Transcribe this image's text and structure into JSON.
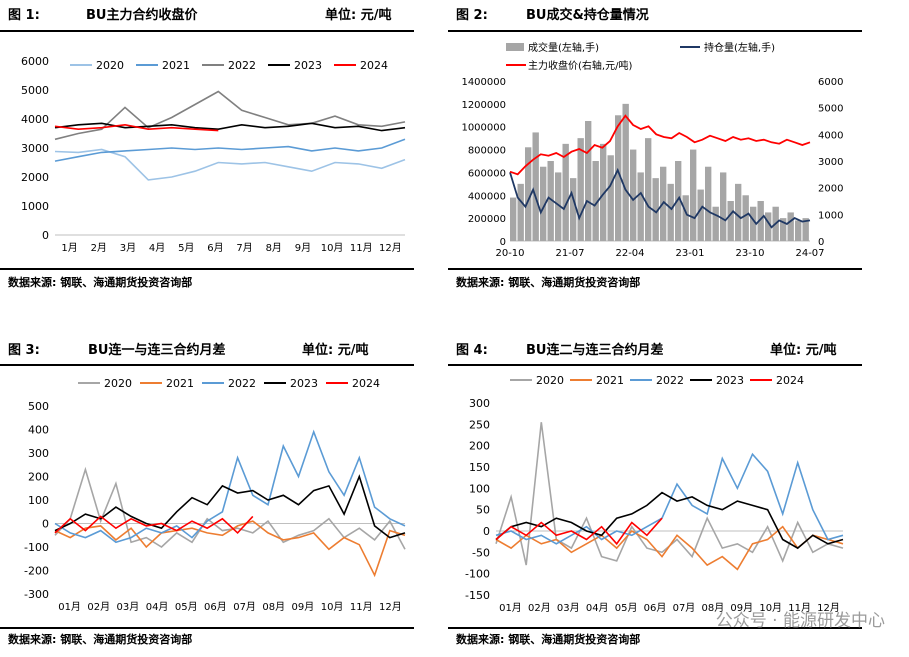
{
  "panels": [
    {
      "figure": "图 1:",
      "title": "BU主力合约收盘价",
      "unit": "单位: 元/吨",
      "source": "数据来源: 钢联、海通期货投资咨询部",
      "chart_data": {
        "type": "line",
        "legend": [
          "2020",
          "2021",
          "2022",
          "2023",
          "2024"
        ],
        "colors": [
          "#9dc3e6",
          "#5b9bd5",
          "#808080",
          "#000000",
          "#ff0000"
        ],
        "x_tick_labels": [
          "1月",
          "2月",
          "3月",
          "4月",
          "5月",
          "6月",
          "7月",
          "8月",
          "9月",
          "10月",
          "11月",
          "12月"
        ],
        "yticks": [
          0,
          1000,
          2000,
          3000,
          4000,
          5000,
          6000
        ],
        "ylim": [
          0,
          6000
        ],
        "series": [
          {
            "name": "2020",
            "values": [
              2880,
              2850,
              2950,
              2700,
              1900,
              2000,
              2200,
              2500,
              2450,
              2500,
              2350,
              2200,
              2500,
              2450,
              2300,
              2600
            ]
          },
          {
            "name": "2021",
            "values": [
              2550,
              2700,
              2850,
              2900,
              2950,
              3000,
              2950,
              3000,
              2950,
              3000,
              3050,
              2900,
              3000,
              2900,
              3000,
              3300
            ]
          },
          {
            "name": "2022",
            "values": [
              3300,
              3500,
              3650,
              4400,
              3700,
              4050,
              4500,
              4950,
              4300,
              4050,
              3800,
              3850,
              4100,
              3800,
              3750,
              3900
            ]
          },
          {
            "name": "2023",
            "values": [
              3700,
              3800,
              3850,
              3700,
              3750,
              3800,
              3700,
              3650,
              3800,
              3700,
              3750,
              3850,
              3700,
              3750,
              3600,
              3700
            ]
          },
          {
            "name": "2024",
            "values": [
              3750,
              3650,
              3700,
              3800,
              3650,
              3700,
              3650,
              3600
            ]
          }
        ]
      }
    },
    {
      "figure": "图 2:",
      "title": "BU成交&持仓量情况",
      "unit": "",
      "source": "数据来源: 钢联、海通期货投资咨询部",
      "chart_data": {
        "type": "bar+line",
        "legend": [
          "成交量(左轴,手)",
          "持仓量(左轴,手)",
          "主力收盘价(右轴,元/吨)"
        ],
        "colors": [
          "#a6a6a6",
          "#1f3864",
          "#ff0000"
        ],
        "x_tick_labels": [
          "20-10",
          "21-07",
          "22-04",
          "23-01",
          "23-10",
          "24-07"
        ],
        "left_yticks": [
          0,
          200000,
          400000,
          600000,
          800000,
          1000000,
          1200000,
          1400000
        ],
        "right_yticks": [
          0,
          1000,
          2000,
          3000,
          4000,
          5000,
          6000
        ],
        "ylim_left": [
          0,
          1400000
        ],
        "ylim_right": [
          0,
          6000
        ],
        "volume": [
          380000,
          500000,
          820000,
          950000,
          650000,
          700000,
          600000,
          850000,
          550000,
          900000,
          1050000,
          700000,
          850000,
          750000,
          1100000,
          1200000,
          800000,
          600000,
          900000,
          550000,
          650000,
          500000,
          700000,
          400000,
          800000,
          450000,
          650000,
          300000,
          600000,
          350000,
          500000,
          400000,
          300000,
          350000,
          250000,
          300000,
          200000,
          250000,
          180000,
          200000
        ],
        "open_interest": [
          600000,
          380000,
          300000,
          450000,
          250000,
          380000,
          330000,
          280000,
          420000,
          200000,
          350000,
          310000,
          400000,
          480000,
          620000,
          450000,
          360000,
          420000,
          300000,
          250000,
          340000,
          280000,
          380000,
          230000,
          200000,
          300000,
          250000,
          220000,
          180000,
          260000,
          200000,
          240000,
          150000,
          220000,
          120000,
          180000,
          150000,
          200000,
          170000,
          180000
        ],
        "close_price": [
          2600,
          2500,
          2800,
          3050,
          3250,
          3200,
          3300,
          3150,
          3350,
          3450,
          3300,
          3600,
          3500,
          3750,
          4300,
          4700,
          4350,
          4200,
          4300,
          4000,
          3900,
          3850,
          4050,
          3900,
          3700,
          3800,
          3950,
          3850,
          3750,
          3900,
          3800,
          3850,
          3750,
          3800,
          3700,
          3650,
          3800,
          3700,
          3600,
          3700
        ]
      }
    },
    {
      "figure": "图 3:",
      "title": "BU连一与连三合约月差",
      "unit": "单位: 元/吨",
      "source": "数据来源: 钢联、海通期货投资咨询部",
      "chart_data": {
        "type": "line",
        "legend": [
          "2020",
          "2021",
          "2022",
          "2023",
          "2024"
        ],
        "colors": [
          "#a6a6a6",
          "#ed7d31",
          "#5b9bd5",
          "#000000",
          "#ff0000"
        ],
        "x_tick_labels": [
          "01月",
          "02月",
          "03月",
          "04月",
          "05月",
          "06月",
          "07月",
          "08月",
          "09月",
          "10月",
          "11月",
          "12月"
        ],
        "yticks": [
          -300,
          -200,
          -100,
          0,
          100,
          200,
          300,
          400,
          500
        ],
        "ylim": [
          -300,
          500
        ],
        "series": [
          {
            "name": "2020",
            "values": [
              -50,
              20,
              230,
              10,
              170,
              -80,
              -60,
              -100,
              -40,
              -80,
              20,
              -30,
              -20,
              -40,
              10,
              -80,
              -50,
              -30,
              20,
              -60,
              -20,
              -70,
              10,
              -110
            ]
          },
          {
            "name": "2021",
            "values": [
              -30,
              -60,
              -20,
              -10,
              -70,
              -20,
              -100,
              -40,
              -30,
              -20,
              -40,
              -50,
              -10,
              10,
              -40,
              -70,
              -60,
              -40,
              -110,
              -60,
              -90,
              -220,
              -30,
              -50
            ]
          },
          {
            "name": "2022",
            "values": [
              0,
              -40,
              -60,
              -30,
              -80,
              -60,
              -20,
              -40,
              -10,
              -60,
              10,
              50,
              280,
              120,
              80,
              330,
              200,
              390,
              220,
              120,
              280,
              70,
              20,
              -10
            ]
          },
          {
            "name": "2023",
            "values": [
              -30,
              0,
              40,
              20,
              70,
              30,
              0,
              -20,
              50,
              110,
              80,
              160,
              130,
              140,
              100,
              120,
              80,
              140,
              160,
              40,
              200,
              -10,
              -60,
              -40
            ]
          },
          {
            "name": "2024",
            "values": [
              -40,
              20,
              -30,
              30,
              -20,
              20,
              -10,
              0,
              -30,
              10,
              -20,
              20,
              -40,
              30
            ]
          }
        ]
      }
    },
    {
      "figure": "图 4:",
      "title": "BU连二与连三合约月差",
      "unit": "单位: 元/吨",
      "source": "数据来源: 钢联、海通期货投资咨询部",
      "chart_data": {
        "type": "line",
        "legend": [
          "2020",
          "2021",
          "2022",
          "2023",
          "2024"
        ],
        "colors": [
          "#a6a6a6",
          "#ed7d31",
          "#5b9bd5",
          "#000000",
          "#ff0000"
        ],
        "x_tick_labels": [
          "01月",
          "02月",
          "03月",
          "04月",
          "05月",
          "06月",
          "07月",
          "08月",
          "09月",
          "10月",
          "11月",
          "12月"
        ],
        "yticks": [
          -150,
          -100,
          -50,
          0,
          50,
          100,
          150,
          200,
          250,
          300
        ],
        "ylim": [
          -150,
          300
        ],
        "series": [
          {
            "name": "2020",
            "values": [
              -30,
              80,
              -80,
              255,
              -20,
              -40,
              30,
              -60,
              -70,
              10,
              -40,
              -50,
              -20,
              -60,
              30,
              -40,
              -30,
              -50,
              10,
              -70,
              20,
              -50,
              -30,
              -40
            ]
          },
          {
            "name": "2021",
            "values": [
              -20,
              -40,
              -10,
              -30,
              -20,
              -50,
              -30,
              -10,
              -40,
              0,
              -20,
              -60,
              -10,
              -40,
              -80,
              -60,
              -90,
              -30,
              -20,
              10,
              -40,
              -10,
              -20,
              -30
            ]
          },
          {
            "name": "2022",
            "values": [
              -10,
              0,
              -20,
              -10,
              -30,
              -10,
              10,
              -20,
              0,
              -10,
              10,
              30,
              110,
              60,
              40,
              170,
              100,
              180,
              140,
              40,
              160,
              50,
              -20,
              -10
            ]
          },
          {
            "name": "2023",
            "values": [
              -20,
              10,
              20,
              10,
              30,
              20,
              0,
              -10,
              30,
              40,
              60,
              90,
              70,
              80,
              60,
              50,
              70,
              60,
              50,
              -20,
              -40,
              -10,
              -30,
              -20
            ]
          },
          {
            "name": "2024",
            "values": [
              -20,
              10,
              -10,
              20,
              -10,
              0,
              -20,
              10,
              -30,
              20,
              -10,
              30
            ]
          }
        ]
      }
    }
  ],
  "watermark": "公众号 · 能源研发中心"
}
